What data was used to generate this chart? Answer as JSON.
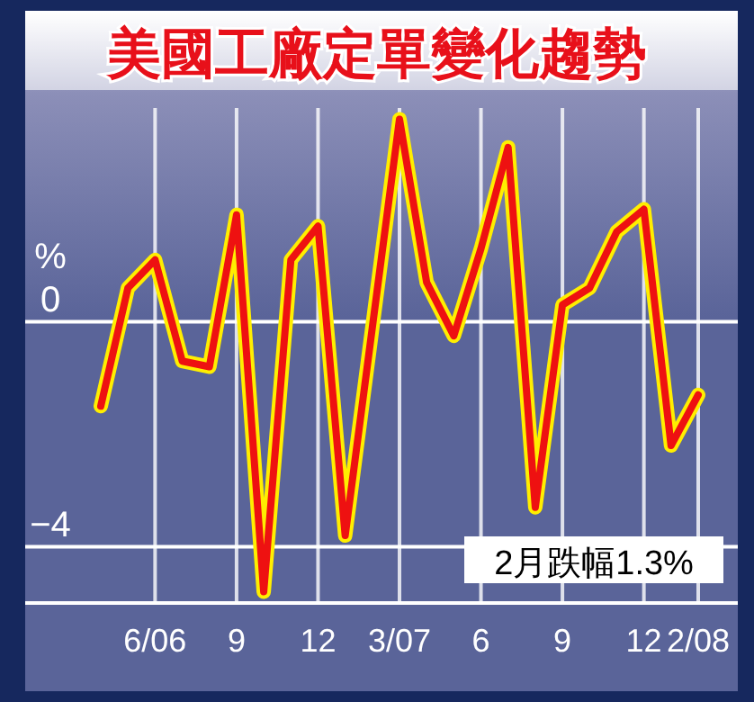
{
  "chart_data": {
    "type": "line",
    "title": "美國工廠定單變化趨勢",
    "ylabel": "%",
    "categories": [
      null,
      null,
      "6/06",
      null,
      null,
      "9",
      null,
      null,
      "12",
      null,
      null,
      "3/07",
      null,
      null,
      "6",
      null,
      null,
      "9",
      null,
      null,
      "12",
      null,
      "2/08"
    ],
    "series": [
      {
        "color": "#ee1111",
        "values": [
          -1.5,
          0.6,
          1.1,
          -0.7,
          -0.8,
          1.9,
          -4.8,
          1.1,
          1.7,
          -3.8,
          -0.1,
          3.6,
          0.7,
          -0.25,
          1.3,
          3.1,
          -3.3,
          0.3,
          0.6,
          1.6,
          2.0,
          -2.2,
          -1.3
        ]
      }
    ],
    "ylim": [
      -5,
      3.8
    ],
    "yticks": [
      0,
      -4
    ],
    "grid": true,
    "marker": "none",
    "line_style": "solid",
    "annotations": [
      "2月跌幅1.3%"
    ]
  }
}
